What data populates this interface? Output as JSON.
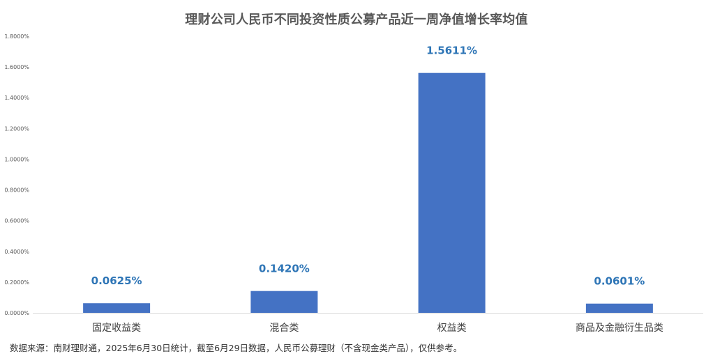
{
  "chart_data": {
    "type": "bar",
    "title": "理财公司人民币不同投资性质公募产品近一周净值增长率均值",
    "categories": [
      "固定收益类",
      "混合类",
      "权益类",
      "商品及金融衍生品类"
    ],
    "values": [
      0.0625,
      0.142,
      1.5611,
      0.0601
    ],
    "value_labels": [
      "0.0625%",
      "0.1420%",
      "1.5611%",
      "0.0601%"
    ],
    "ylim": [
      0,
      1.8
    ],
    "yticks": [
      0,
      0.2,
      0.4,
      0.6,
      0.8,
      1.0,
      1.2,
      1.4,
      1.6,
      1.8
    ],
    "ytick_labels": [
      "0.0000%",
      "0.2000%",
      "0.4000%",
      "0.6000%",
      "0.8000%",
      "1.0000%",
      "1.2000%",
      "1.4000%",
      "1.6000%",
      "1.8000%"
    ],
    "xlabel": "",
    "ylabel": "",
    "grid": false,
    "legend": "none",
    "bar_color": "#4472C4",
    "label_color": "#2E75B6"
  },
  "footnote": "数据来源：南财理财通，2025年6月30日统计，截至6月29日数据，人民币公募理财（不含现金类产品），仅供参考。"
}
